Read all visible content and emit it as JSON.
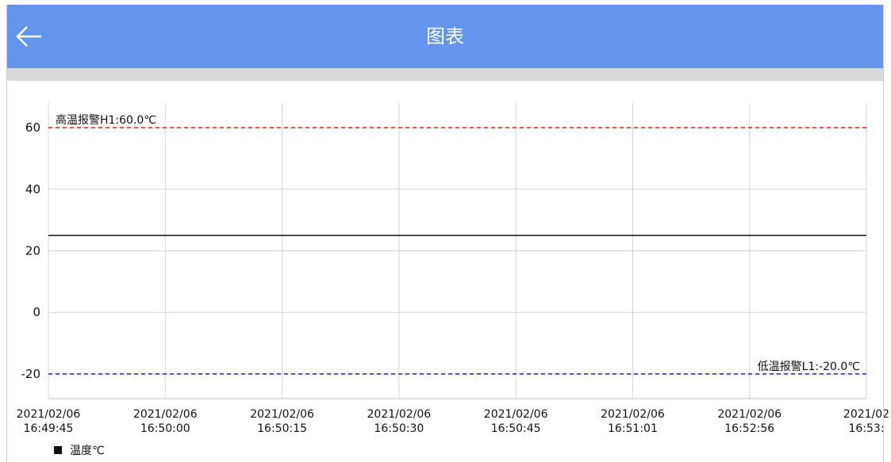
{
  "header": {
    "title": "图表",
    "back_icon": "arrow-left-icon"
  },
  "colors": {
    "app_bar": "#6495ed",
    "high_alarm": "#e8191f",
    "low_alarm": "#1a1ae6",
    "series": "#111111"
  },
  "chart_data": {
    "type": "line",
    "title": "",
    "xlabel": "",
    "ylabel": "",
    "ylim": [
      -28,
      68
    ],
    "yticks": [
      60,
      40,
      20,
      0,
      -20
    ],
    "x_categories": [
      [
        "2021/02/06",
        "16:49:45"
      ],
      [
        "2021/02/06",
        "16:50:00"
      ],
      [
        "2021/02/06",
        "16:50:15"
      ],
      [
        "2021/02/06",
        "16:50:30"
      ],
      [
        "2021/02/06",
        "16:50:45"
      ],
      [
        "2021/02/06",
        "16:51:01"
      ],
      [
        "2021/02/06",
        "16:52:56"
      ],
      [
        "2021/02",
        "16:53:"
      ]
    ],
    "series": [
      {
        "name": "温度℃",
        "values": [
          25,
          25,
          25,
          25,
          25,
          25,
          25,
          25
        ]
      }
    ],
    "limit_lines": [
      {
        "label": "高温报警H1:60.0℃",
        "value": 60
      },
      {
        "label": "低温报警L1:-20.0℃",
        "value": -20
      }
    ],
    "grid": true,
    "legend_position": "bottom-left"
  }
}
